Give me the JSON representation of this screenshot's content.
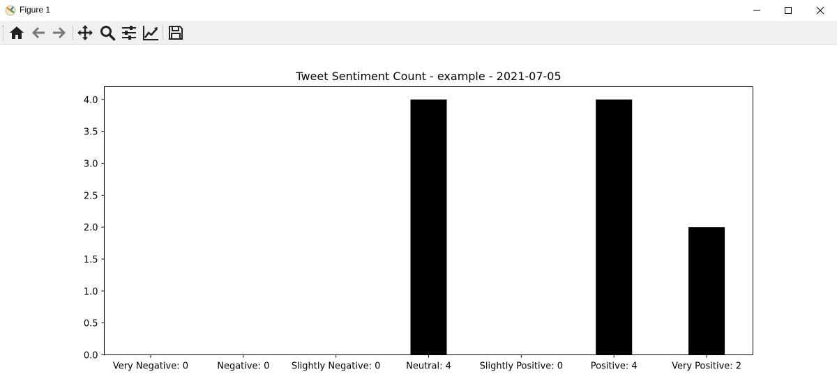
{
  "window": {
    "title": "Figure 1",
    "icon": "matplotlib-icon",
    "controls": [
      "minimize-icon",
      "maximize-icon",
      "close-icon"
    ]
  },
  "toolbar": {
    "tools": [
      "home-icon",
      "back-arrow-icon",
      "forward-arrow-icon",
      "pan-icon",
      "zoom-icon",
      "configure-subplots-icon",
      "edit-axis-icon",
      "save-icon"
    ]
  },
  "chart_data": {
    "type": "bar",
    "title": "Tweet Sentiment Count - example - 2021-07-05",
    "xlabel": "",
    "ylabel": "",
    "categories": [
      "Very Negative: 0",
      "Negative: 0",
      "Slightly Negative: 0",
      "Neutral: 4",
      "Slightly Positive: 0",
      "Positive: 4",
      "Very Positive: 2"
    ],
    "values": [
      0,
      0,
      0,
      4,
      0,
      4,
      2
    ],
    "ylim": [
      0,
      4.2
    ],
    "yticks": [
      "0.0",
      "0.5",
      "1.0",
      "1.5",
      "2.0",
      "2.5",
      "3.0",
      "3.5",
      "4.0"
    ],
    "bar_color": "#000000",
    "grid": false
  }
}
